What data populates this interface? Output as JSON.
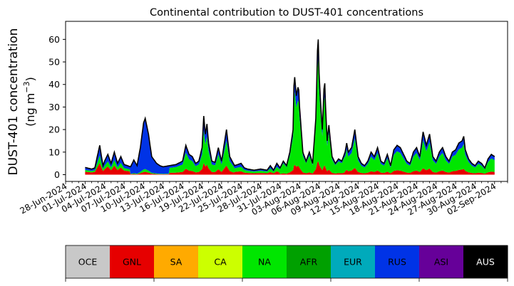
{
  "chart_data": {
    "type": "area",
    "stacked": true,
    "title": "Continental contribution to DUST-401 concentrations",
    "ylabel_line1": "DUST-401 concentration",
    "ylabel_line2": "(ng m$^{-3}$)",
    "ylabel_unit_prefix": "(ng m",
    "ylabel_unit_sup": "−3",
    "ylabel_unit_suffix": ")",
    "xlabel": "",
    "x_start": "2024-06-28",
    "x_end": "2024-09-04",
    "data_start": "2024-07-01",
    "data_end": "2024-09-02",
    "ylim": [
      -3,
      68
    ],
    "y_ticks": [
      0,
      10,
      20,
      30,
      40,
      50,
      60
    ],
    "x_tick_labels": [
      "28-Jun-2024",
      "01-Jul-2024",
      "04-Jul-2024",
      "07-Jul-2024",
      "10-Jul-2024",
      "13-Jul-2024",
      "16-Jul-2024",
      "19-Jul-2024",
      "22-Jul-2024",
      "25-Jul-2024",
      "28-Jul-2024",
      "31-Jul-2024",
      "03-Aug-2024",
      "06-Aug-2024",
      "09-Aug-2024",
      "12-Aug-2024",
      "15-Aug-2024",
      "18-Aug-2024",
      "21-Aug-2024",
      "24-Aug-2024",
      "27-Aug-2024",
      "30-Aug-2024",
      "02-Sep-2024"
    ],
    "grid": false,
    "total_line_color": "#000000",
    "total_keypoints": [
      [
        "2024-07-01",
        3.2
      ],
      [
        "2024-07-02",
        2.5
      ],
      [
        "2024-07-02T12",
        3.0
      ],
      [
        "2024-07-03T06",
        13.0
      ],
      [
        "2024-07-03T18",
        4.0
      ],
      [
        "2024-07-04",
        6.0
      ],
      [
        "2024-07-04T12",
        9.0
      ],
      [
        "2024-07-05",
        5.0
      ],
      [
        "2024-07-05T12",
        10.0
      ],
      [
        "2024-07-06",
        5.0
      ],
      [
        "2024-07-06T12",
        8.0
      ],
      [
        "2024-07-07",
        4.5
      ],
      [
        "2024-07-08",
        3.5
      ],
      [
        "2024-07-08T12",
        6.5
      ],
      [
        "2024-07-09",
        4.0
      ],
      [
        "2024-07-09T12",
        12.0
      ],
      [
        "2024-07-10",
        23.0
      ],
      [
        "2024-07-10T06",
        25.0
      ],
      [
        "2024-07-10T18",
        18.0
      ],
      [
        "2024-07-11T06",
        8.0
      ],
      [
        "2024-07-12",
        5.0
      ],
      [
        "2024-07-12T12",
        4.0
      ],
      [
        "2024-07-13",
        3.5
      ],
      [
        "2024-07-14",
        4.0
      ],
      [
        "2024-07-15",
        4.5
      ],
      [
        "2024-07-16",
        6.0
      ],
      [
        "2024-07-16T12",
        13.0
      ],
      [
        "2024-07-17",
        9.0
      ],
      [
        "2024-07-17T12",
        8.0
      ],
      [
        "2024-07-18",
        5.0
      ],
      [
        "2024-07-18T12",
        6.0
      ],
      [
        "2024-07-19",
        12.0
      ],
      [
        "2024-07-19T06",
        26.0
      ],
      [
        "2024-07-19T12",
        18.0
      ],
      [
        "2024-07-19T18",
        22.5
      ],
      [
        "2024-07-20",
        14.0
      ],
      [
        "2024-07-20T12",
        6.0
      ],
      [
        "2024-07-21",
        5.5
      ],
      [
        "2024-07-21T12",
        12.0
      ],
      [
        "2024-07-22",
        6.0
      ],
      [
        "2024-07-22T18",
        20.0
      ],
      [
        "2024-07-23T06",
        8.0
      ],
      [
        "2024-07-24",
        4.0
      ],
      [
        "2024-07-25",
        5.0
      ],
      [
        "2024-07-25T12",
        3.0
      ],
      [
        "2024-07-26",
        2.5
      ],
      [
        "2024-07-27",
        2.0
      ],
      [
        "2024-07-28",
        2.5
      ],
      [
        "2024-07-29",
        2.0
      ],
      [
        "2024-07-29T12",
        4.0
      ],
      [
        "2024-07-30",
        2.0
      ],
      [
        "2024-07-30T12",
        5.0
      ],
      [
        "2024-07-31",
        3.0
      ],
      [
        "2024-07-31T12",
        6.0
      ],
      [
        "2024-08-01",
        4.0
      ],
      [
        "2024-08-01T12",
        10.0
      ],
      [
        "2024-08-02",
        20.0
      ],
      [
        "2024-08-02T04",
        46.0
      ],
      [
        "2024-08-02T12",
        35.0
      ],
      [
        "2024-08-02T20",
        40.0
      ],
      [
        "2024-08-03",
        30.0
      ],
      [
        "2024-08-03T12",
        10.0
      ],
      [
        "2024-08-04",
        6.0
      ],
      [
        "2024-08-04T12",
        10.0
      ],
      [
        "2024-08-05",
        5.0
      ],
      [
        "2024-08-05T12",
        25.0
      ],
      [
        "2024-08-05T20",
        65.0
      ],
      [
        "2024-08-06",
        45.0
      ],
      [
        "2024-08-06T06",
        31.0
      ],
      [
        "2024-08-06T12",
        20.0
      ],
      [
        "2024-08-06T20",
        44.0
      ],
      [
        "2024-08-07",
        30.0
      ],
      [
        "2024-08-07T06",
        15.0
      ],
      [
        "2024-08-07T12",
        22.0
      ],
      [
        "2024-08-08",
        8.0
      ],
      [
        "2024-08-08T12",
        5.0
      ],
      [
        "2024-08-09",
        7.0
      ],
      [
        "2024-08-09T12",
        6.0
      ],
      [
        "2024-08-10",
        10.0
      ],
      [
        "2024-08-10T06",
        14.0
      ],
      [
        "2024-08-10T12",
        10.0
      ],
      [
        "2024-08-11",
        12.0
      ],
      [
        "2024-08-11T12",
        20.0
      ],
      [
        "2024-08-12",
        8.0
      ],
      [
        "2024-08-12T12",
        5.0
      ],
      [
        "2024-08-13",
        4.0
      ],
      [
        "2024-08-13T12",
        6.0
      ],
      [
        "2024-08-14",
        10.0
      ],
      [
        "2024-08-14T12",
        8.0
      ],
      [
        "2024-08-15",
        12.0
      ],
      [
        "2024-08-15T12",
        6.0
      ],
      [
        "2024-08-16",
        5.0
      ],
      [
        "2024-08-16T12",
        9.0
      ],
      [
        "2024-08-17",
        4.0
      ],
      [
        "2024-08-17T12",
        11.0
      ],
      [
        "2024-08-18",
        13.0
      ],
      [
        "2024-08-18T12",
        12.0
      ],
      [
        "2024-08-19",
        9.0
      ],
      [
        "2024-08-19T12",
        6.0
      ],
      [
        "2024-08-20",
        5.0
      ],
      [
        "2024-08-20T12",
        10.0
      ],
      [
        "2024-08-21",
        12.0
      ],
      [
        "2024-08-21T12",
        8.0
      ],
      [
        "2024-08-22",
        19.0
      ],
      [
        "2024-08-22T12",
        13.0
      ],
      [
        "2024-08-23",
        18.0
      ],
      [
        "2024-08-23T12",
        8.0
      ],
      [
        "2024-08-24",
        6.0
      ],
      [
        "2024-08-24T12",
        10.0
      ],
      [
        "2024-08-25",
        12.0
      ],
      [
        "2024-08-25T12",
        8.0
      ],
      [
        "2024-08-26",
        6.0
      ],
      [
        "2024-08-26T12",
        10.0
      ],
      [
        "2024-08-27",
        11.0
      ],
      [
        "2024-08-27T12",
        14.0
      ],
      [
        "2024-08-28",
        15.0
      ],
      [
        "2024-08-28T06",
        17.0
      ],
      [
        "2024-08-28T12",
        11.0
      ],
      [
        "2024-08-29",
        7.0
      ],
      [
        "2024-08-29T12",
        5.0
      ],
      [
        "2024-08-30",
        4.0
      ],
      [
        "2024-08-30T12",
        6.0
      ],
      [
        "2024-08-31",
        5.0
      ],
      [
        "2024-08-31T12",
        3.0
      ],
      [
        "2024-09-01",
        7.0
      ],
      [
        "2024-09-01T12",
        9.0
      ],
      [
        "2024-09-02",
        8.0
      ]
    ],
    "series_note_order": [
      "OCE",
      "GNL",
      "SA",
      "CA",
      "NA",
      "AFR",
      "EUR",
      "RUS",
      "ASI",
      "AUS"
    ],
    "series_fractions_by_period": [
      {
        "from": "2024-07-01",
        "to": "2024-07-08",
        "GNL": 0.4,
        "NA": 0.25,
        "RUS": 0.35
      },
      {
        "from": "2024-07-08",
        "to": "2024-07-14",
        "GNL": 0.05,
        "NA": 0.05,
        "RUS": 0.9
      },
      {
        "from": "2024-07-14",
        "to": "2024-07-24",
        "GNL": 0.2,
        "NA": 0.55,
        "RUS": 0.25
      },
      {
        "from": "2024-07-24",
        "to": "2024-07-31",
        "GNL": 0.3,
        "NA": 0.4,
        "RUS": 0.3
      },
      {
        "from": "2024-07-31",
        "to": "2024-08-10",
        "GNL": 0.1,
        "NA": 0.75,
        "RUS": 0.15
      },
      {
        "from": "2024-08-10",
        "to": "2024-09-03",
        "GNL": 0.15,
        "NA": 0.65,
        "RUS": 0.2
      }
    ],
    "legend": {
      "placement": "bottom",
      "items": [
        {
          "label": "OCE",
          "color": "#c8c8c8",
          "text_color": "#000000"
        },
        {
          "label": "GNL",
          "color": "#e60000",
          "text_color": "#000000"
        },
        {
          "label": "SA",
          "color": "#ffaa00",
          "text_color": "#000000"
        },
        {
          "label": "CA",
          "color": "#ccff00",
          "text_color": "#000000"
        },
        {
          "label": "NA",
          "color": "#00e600",
          "text_color": "#000000"
        },
        {
          "label": "AFR",
          "color": "#00a000",
          "text_color": "#000000"
        },
        {
          "label": "EUR",
          "color": "#00aabb",
          "text_color": "#000000"
        },
        {
          "label": "RUS",
          "color": "#0033e6",
          "text_color": "#000000"
        },
        {
          "label": "ASI",
          "color": "#660099",
          "text_color": "#000000"
        },
        {
          "label": "AUS",
          "color": "#000000",
          "text_color": "#ffffff"
        }
      ]
    }
  }
}
